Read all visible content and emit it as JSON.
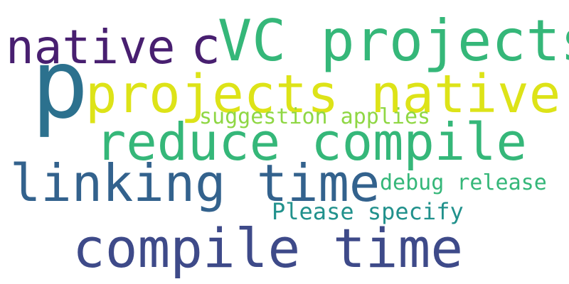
{
  "colors": {
    "background": "#ffffff",
    "dark_purple": "#481f70",
    "green": "#35b779",
    "teal_blue": "#2c718e",
    "yellow": "#dde318",
    "light_green": "#8fd744",
    "slate_blue": "#33628d",
    "teal": "#21918c",
    "indigo": "#3e4a89"
  },
  "words": [
    {
      "text": "native",
      "color": "#481f70"
    },
    {
      "text": "c",
      "color": "#481f70"
    },
    {
      "text": "VC projects",
      "color": "#35b779"
    },
    {
      "text": "p",
      "color": "#2c718e"
    },
    {
      "text": "projects native",
      "color": "#dde318"
    },
    {
      "text": "suggestion applies",
      "color": "#8fd744"
    },
    {
      "text": "reduce compile",
      "color": "#35b779"
    },
    {
      "text": "linking time",
      "color": "#33628d"
    },
    {
      "text": "debug release",
      "color": "#35b779"
    },
    {
      "text": "Please specify",
      "color": "#21918c"
    },
    {
      "text": "compile time",
      "color": "#3e4a89"
    }
  ]
}
